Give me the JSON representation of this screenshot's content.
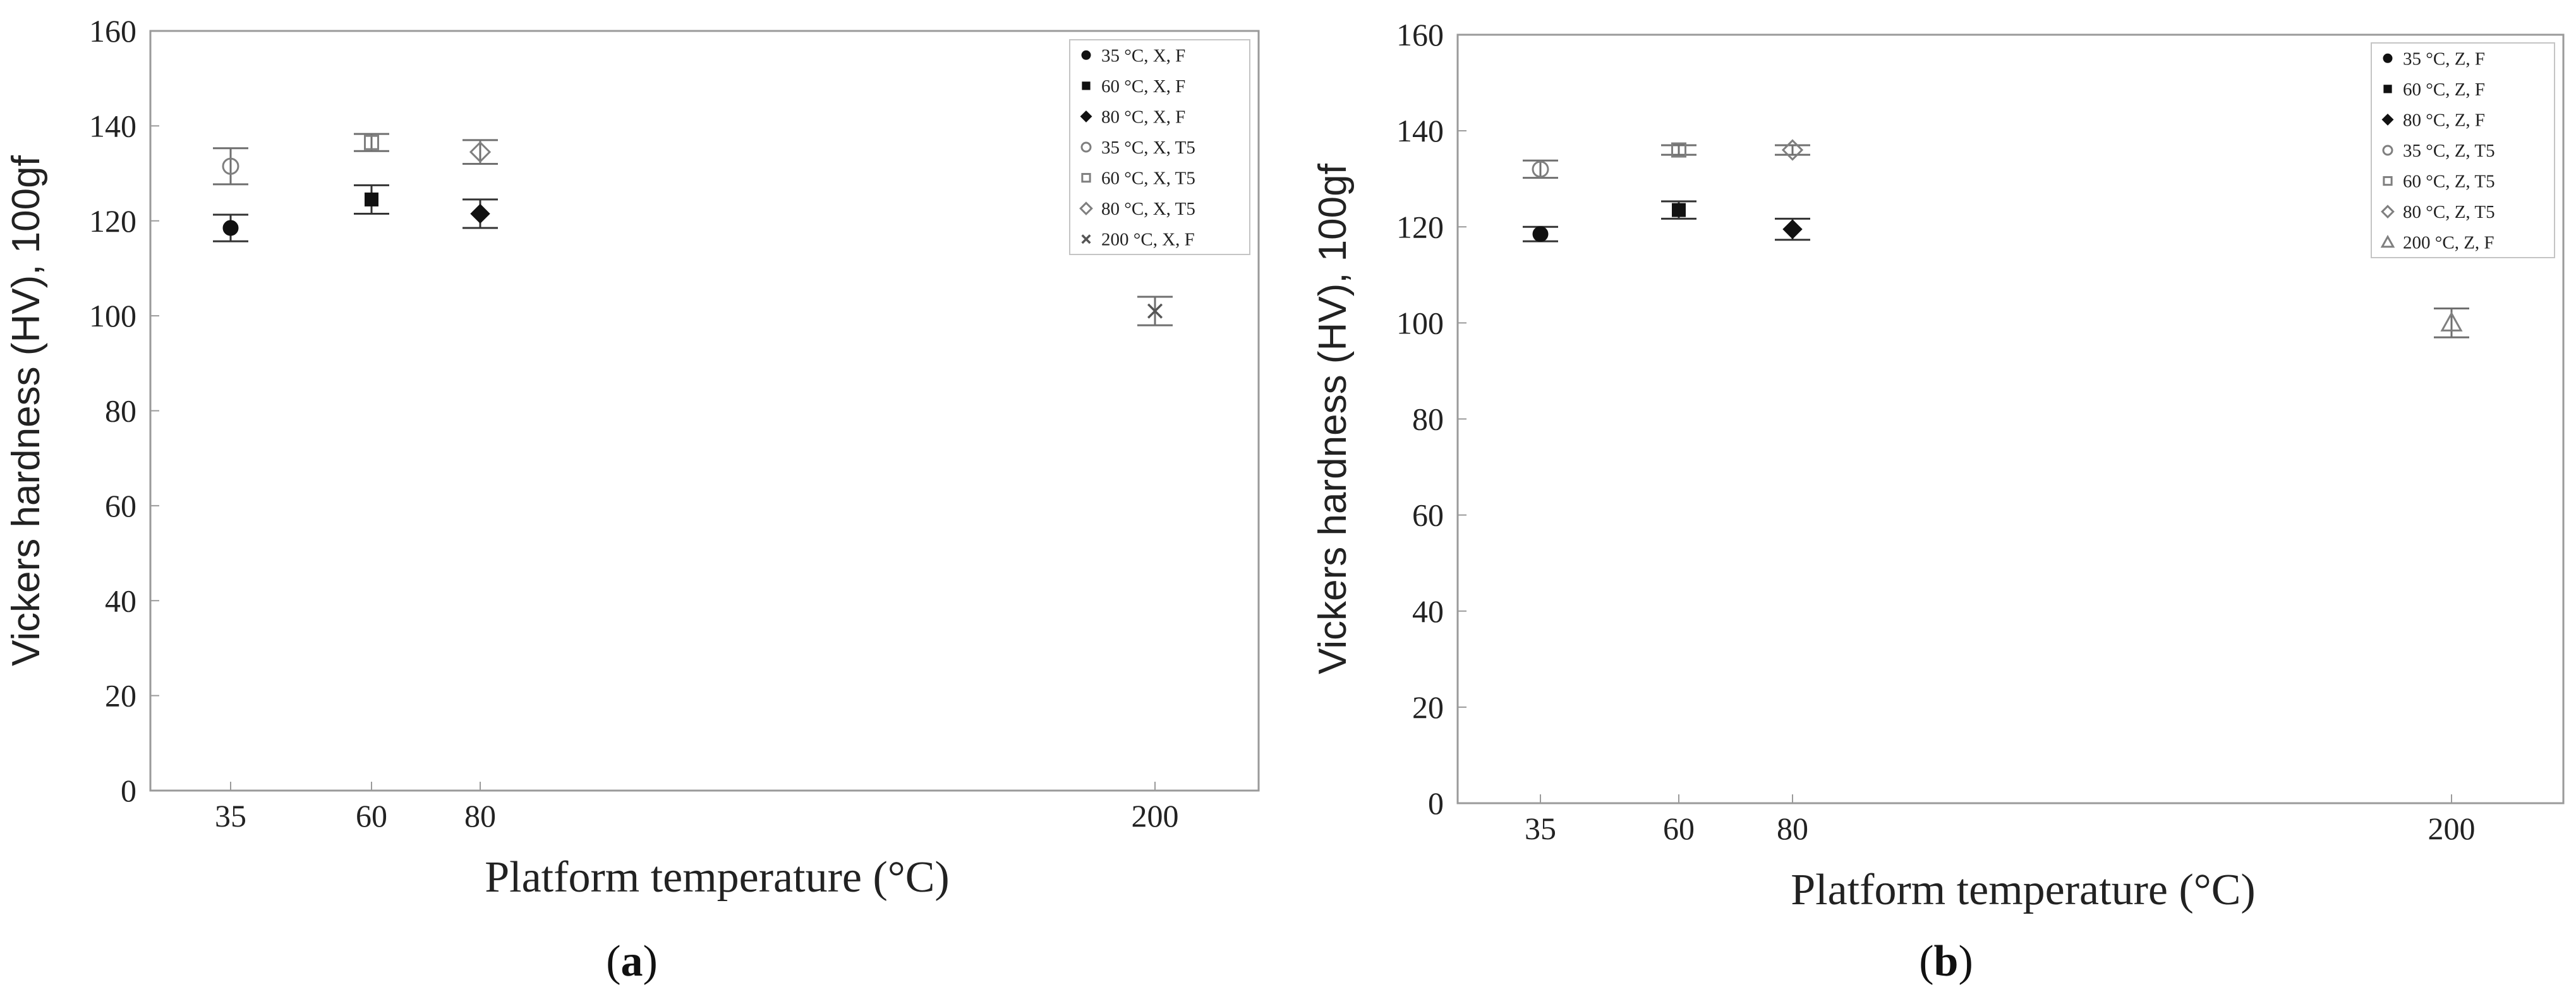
{
  "chart_data": [
    {
      "type": "scatter",
      "panel_label": "a",
      "xlabel": "Platform temperature (°C)",
      "ylabel": "Vickers hardness (HV), 100gf",
      "ylim": [
        0,
        160
      ],
      "yticks": [
        0,
        20,
        40,
        60,
        80,
        100,
        120,
        140,
        160
      ],
      "xticks": [
        35,
        60,
        80,
        200
      ],
      "legend_position": "top-right",
      "grid": false,
      "error_bars": true,
      "series": [
        {
          "name": "35 °C, X, F",
          "marker": "filled-circle",
          "x": [
            35
          ],
          "y": [
            118.5
          ],
          "err": [
            2.8
          ]
        },
        {
          "name": "60 °C, X, F",
          "marker": "filled-square",
          "x": [
            60
          ],
          "y": [
            124.5
          ],
          "err": [
            3.0
          ]
        },
        {
          "name": "80 °C, X, F",
          "marker": "filled-diamond",
          "x": [
            80
          ],
          "y": [
            121.5
          ],
          "err": [
            3.0
          ]
        },
        {
          "name": "35 °C, X, T5",
          "marker": "open-circle",
          "x": [
            35
          ],
          "y": [
            131.5
          ],
          "err": [
            3.8
          ]
        },
        {
          "name": "60 °C, X, T5",
          "marker": "open-square",
          "x": [
            60
          ],
          "y": [
            136.5
          ],
          "err": [
            1.8
          ]
        },
        {
          "name": "80 °C, X, T5",
          "marker": "open-diamond",
          "x": [
            80
          ],
          "y": [
            134.5
          ],
          "err": [
            2.5
          ]
        },
        {
          "name": "200 °C, X, F",
          "marker": "cross",
          "x": [
            200
          ],
          "y": [
            101
          ],
          "err": [
            3.0
          ]
        }
      ]
    },
    {
      "type": "scatter",
      "panel_label": "b",
      "xlabel": "Platform temperature (°C)",
      "ylabel": "Vickers hardness (HV), 100gf",
      "ylim": [
        0,
        160
      ],
      "yticks": [
        0,
        20,
        40,
        60,
        80,
        100,
        120,
        140,
        160
      ],
      "xticks": [
        35,
        60,
        80,
        200
      ],
      "legend_position": "top-right",
      "grid": false,
      "error_bars": true,
      "series": [
        {
          "name": "35 °C, Z, F",
          "marker": "filled-circle",
          "x": [
            35
          ],
          "y": [
            118.5
          ],
          "err": [
            1.5
          ]
        },
        {
          "name": "60 °C, Z, F",
          "marker": "filled-square",
          "x": [
            60
          ],
          "y": [
            123.5
          ],
          "err": [
            1.8
          ]
        },
        {
          "name": "80 °C, Z, F",
          "marker": "filled-diamond",
          "x": [
            80
          ],
          "y": [
            119.5
          ],
          "err": [
            2.2
          ]
        },
        {
          "name": "35 °C, Z, T5",
          "marker": "open-circle",
          "x": [
            35
          ],
          "y": [
            132
          ],
          "err": [
            1.8
          ]
        },
        {
          "name": "60 °C, Z, T5",
          "marker": "open-square",
          "x": [
            60
          ],
          "y": [
            136
          ],
          "err": [
            1.0
          ]
        },
        {
          "name": "80 °C, Z, T5",
          "marker": "open-diamond",
          "x": [
            80
          ],
          "y": [
            136
          ],
          "err": [
            1.0
          ]
        },
        {
          "name": "200 °C, Z, F",
          "marker": "open-triangle",
          "x": [
            200
          ],
          "y": [
            100
          ],
          "err": [
            3.0
          ]
        }
      ]
    }
  ],
  "colors": {
    "axis": "#9a9a9a",
    "filled_marker": "#111111",
    "open_marker": "#7f7f7f",
    "text": "#222222"
  }
}
